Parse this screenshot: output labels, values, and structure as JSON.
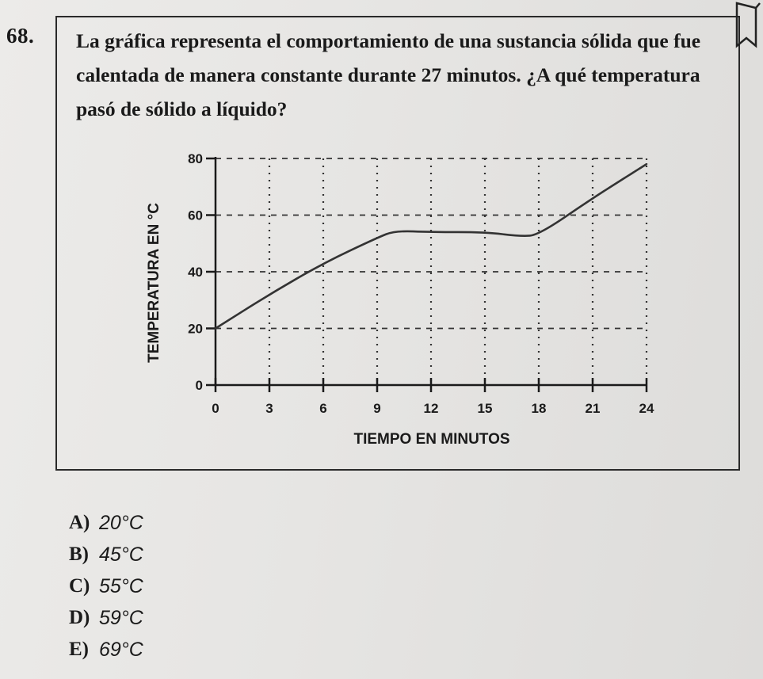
{
  "question": {
    "number": "68.",
    "text_lines": [
      "La gráfica representa el comportamiento de una sustancia sólida que fue",
      "calentada de manera constante durante 27 minutos. ¿A qué temperatura",
      "pasó de sólido a líquido?"
    ]
  },
  "chart_data": {
    "type": "line",
    "xlabel": "TIEMPO EN MINUTOS",
    "ylabel": "TEMPERATURA EN °C",
    "x_ticks": [
      0,
      3,
      6,
      9,
      12,
      15,
      18,
      21,
      24
    ],
    "y_ticks": [
      0,
      20,
      40,
      60,
      80
    ],
    "xlim": [
      0,
      24
    ],
    "ylim": [
      0,
      80
    ],
    "grid": true,
    "series": [
      {
        "x": [
          0,
          3,
          6,
          9,
          10,
          12,
          15,
          17,
          18,
          21,
          24
        ],
        "y": [
          20,
          32,
          43,
          52,
          54.5,
          54,
          54,
          52.5,
          53,
          66,
          78
        ],
        "color": "#333333"
      }
    ]
  },
  "options": [
    {
      "letter": "A)",
      "value": "20°C"
    },
    {
      "letter": "B)",
      "value": "45°C"
    },
    {
      "letter": "C)",
      "value": "55°C"
    },
    {
      "letter": "D)",
      "value": "59°C"
    },
    {
      "letter": "E)",
      "value": "69°C"
    }
  ],
  "colors": {
    "paper": "#e9e8e6",
    "ink": "#1a1a1a",
    "grid": "#333333"
  },
  "icons": {
    "corner": "bookmark-icon"
  }
}
